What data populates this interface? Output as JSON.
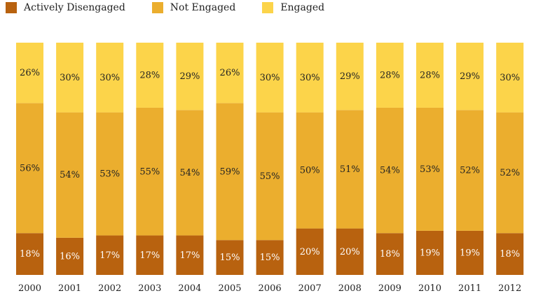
{
  "chart_data": {
    "type": "bar",
    "stacked": true,
    "categories": [
      "2000",
      "2001",
      "2002",
      "2003",
      "2004",
      "2005",
      "2006",
      "2007",
      "2008",
      "2009",
      "2010",
      "2011",
      "2012"
    ],
    "series": [
      {
        "name": "Actively Disengaged",
        "color": "#b8620f",
        "values": [
          18,
          16,
          17,
          17,
          17,
          15,
          15,
          20,
          20,
          18,
          19,
          19,
          18
        ]
      },
      {
        "name": "Not Engaged",
        "color": "#ebae2e",
        "values": [
          56,
          54,
          53,
          55,
          54,
          59,
          55,
          50,
          51,
          54,
          53,
          52,
          52
        ]
      },
      {
        "name": "Engaged",
        "color": "#fcd44a",
        "values": [
          26,
          30,
          30,
          28,
          29,
          26,
          30,
          30,
          29,
          28,
          28,
          29,
          30
        ]
      }
    ],
    "value_suffix": "%",
    "ylim": [
      0,
      100
    ],
    "grid": false,
    "legend_position": "top-left",
    "title": "",
    "xlabel": "",
    "ylabel": ""
  }
}
